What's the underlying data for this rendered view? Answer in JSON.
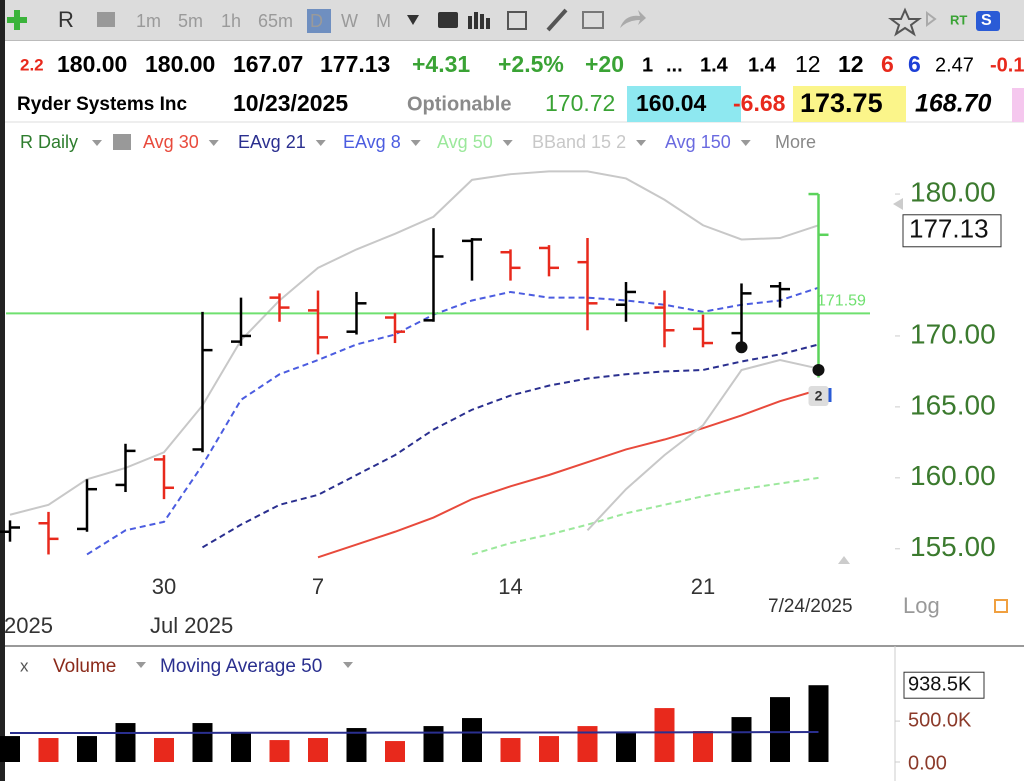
{
  "toolbar": {
    "symbol": "R",
    "intervals": [
      "1m",
      "5m",
      "1h",
      "65m",
      "D",
      "W",
      "M"
    ],
    "active": "D",
    "rt": "RT",
    "s": "S"
  },
  "quote_row1": [
    {
      "text": "2.2",
      "color": "#e8291c"
    },
    {
      "text": "180.00",
      "color": "#000"
    },
    {
      "text": "180.00",
      "color": "#000"
    },
    {
      "text": "167.07",
      "color": "#000"
    },
    {
      "text": "177.13",
      "color": "#000"
    },
    {
      "text": "+4.31",
      "color": "#3aa335"
    },
    {
      "text": "+2.5%",
      "color": "#3aa335"
    },
    {
      "text": "+20",
      "color": "#3aa335"
    },
    {
      "text": "1",
      "color": "#000"
    },
    {
      "text": "...",
      "color": "#000"
    },
    {
      "text": "1.4",
      "color": "#000"
    },
    {
      "text": "1.4",
      "color": "#000"
    },
    {
      "text": "12",
      "color": "#000"
    },
    {
      "text": "12",
      "color": "#000"
    },
    {
      "text": "6",
      "color": "#e8291c"
    },
    {
      "text": "6",
      "color": "#1c3fd6"
    },
    {
      "text": "2.47",
      "color": "#000"
    },
    {
      "text": "-0.1",
      "color": "#e8291c"
    }
  ],
  "quote_row2": [
    {
      "text": "Ryder Systems Inc",
      "color": "#000"
    },
    {
      "text": "10/23/2025",
      "color": "#000"
    },
    {
      "text": "Optionable",
      "color": "#8a8a8a"
    },
    {
      "text": "170.72",
      "color": "#3aa335"
    },
    {
      "text": "160.04",
      "color": "#000",
      "background": "#8ee8f0"
    },
    {
      "text": "-6.68",
      "color": "#e8291c"
    },
    {
      "text": "173.75",
      "color": "#000",
      "background": "#fbf58a"
    },
    {
      "text": "168.70",
      "color": "#000"
    }
  ],
  "chart_data": {
    "type": "ohlc",
    "study_label": "R Daily",
    "hidden_study": "Avg 150",
    "more": "More",
    "categories": [
      null,
      null,
      null,
      null,
      "30",
      null,
      null,
      null,
      "7",
      null,
      null,
      null,
      null,
      "14",
      null,
      null,
      null,
      null,
      "21",
      null,
      null,
      null
    ],
    "x_sublabels": [
      "2025",
      "Jul 2025"
    ],
    "date_label": "7/24/2025",
    "scale_label": "Log",
    "badge": "2",
    "open": [
      156.2,
      156.8,
      156.4,
      159.5,
      161.3,
      162.0,
      169.6,
      172.7,
      171.8,
      170.3,
      171.3,
      171.1,
      176.7,
      175.9,
      176.2,
      175.2,
      172.2,
      172.0,
      170.5,
      170.2,
      173.5,
      180.0
    ],
    "high": [
      157.0,
      157.6,
      159.9,
      162.4,
      161.6,
      171.7,
      172.7,
      173.0,
      173.2,
      173.1,
      171.6,
      177.6,
      176.9,
      176.1,
      176.4,
      176.9,
      173.8,
      173.2,
      171.5,
      173.7,
      173.8,
      180.0
    ],
    "low": [
      155.5,
      154.6,
      156.2,
      159.0,
      158.5,
      161.8,
      169.3,
      171.0,
      168.7,
      170.1,
      169.5,
      171.0,
      173.9,
      173.9,
      174.2,
      170.4,
      171.0,
      169.2,
      169.2,
      169.6,
      172.0,
      167.07
    ],
    "close": [
      156.5,
      155.7,
      159.2,
      161.9,
      159.3,
      169.0,
      170.0,
      172.0,
      169.9,
      172.3,
      170.3,
      175.6,
      176.8,
      174.8,
      174.8,
      172.3,
      173.1,
      170.4,
      169.5,
      173.0,
      173.3,
      177.13
    ],
    "colors": [
      "#000",
      "#e8291c",
      "#000",
      "#000",
      "#e8291c",
      "#000",
      "#000",
      "#e8291c",
      "#e8291c",
      "#000",
      "#e8291c",
      "#000",
      "#000",
      "#e8291c",
      "#e8291c",
      "#e8291c",
      "#000",
      "#e8291c",
      "#e8291c",
      "#000",
      "#000",
      "#5bd35b"
    ],
    "signals": [
      null,
      null,
      null,
      null,
      null,
      null,
      null,
      null,
      null,
      null,
      null,
      null,
      null,
      null,
      null,
      null,
      null,
      null,
      null,
      169.2,
      null,
      167.6
    ],
    "series": [
      {
        "name": "Avg 30",
        "color": "#e84a3c",
        "dash": false,
        "values": [
          null,
          null,
          null,
          null,
          null,
          null,
          null,
          null,
          154.4,
          155.3,
          156.2,
          157.2,
          158.5,
          159.4,
          160.2,
          161.1,
          162.0,
          162.7,
          163.5,
          164.4,
          165.4,
          166.2
        ]
      },
      {
        "name": "EAvg 21",
        "color": "#2a2f8f",
        "dash": true,
        "values": [
          null,
          null,
          null,
          null,
          null,
          155.1,
          156.7,
          158.1,
          158.8,
          160.2,
          161.6,
          163.4,
          164.8,
          165.8,
          166.5,
          167.0,
          167.3,
          167.5,
          167.6,
          168.2,
          168.7,
          169.4
        ]
      },
      {
        "name": "EAvg 8",
        "color": "#4b5ce0",
        "dash": true,
        "values": [
          null,
          null,
          154.6,
          156.3,
          156.9,
          160.9,
          165.5,
          167.3,
          168.3,
          169.4,
          170.1,
          171.5,
          172.5,
          173.1,
          172.7,
          172.7,
          172.5,
          172.2,
          171.7,
          172.2,
          172.5,
          173.4
        ]
      },
      {
        "name": "Avg 50",
        "color": "#9be89b",
        "dash": true,
        "values": [
          null,
          null,
          null,
          null,
          null,
          null,
          null,
          null,
          null,
          null,
          null,
          null,
          154.6,
          155.4,
          156.0,
          156.7,
          157.5,
          158.1,
          158.7,
          159.2,
          159.6,
          160.0
        ]
      },
      {
        "name": "BBand 15 2",
        "color": "#c8c8c8",
        "dash": false,
        "values": [
          157.4,
          158.1,
          159.9,
          160.7,
          161.8,
          165.1,
          169.7,
          172.5,
          174.8,
          176.1,
          177.2,
          178.4,
          181.0,
          181.4,
          181.6,
          181.6,
          181.1,
          179.6,
          177.8,
          176.8,
          176.9,
          177.8
        ],
        "lower": [
          null,
          null,
          null,
          null,
          null,
          null,
          null,
          null,
          null,
          null,
          null,
          null,
          null,
          null,
          null,
          156.3,
          159.2,
          161.6,
          163.7,
          167.6,
          168.3,
          167.7
        ]
      }
    ],
    "hline": {
      "value": 171.59,
      "color": "#6fe06f"
    },
    "last_price": 177.13,
    "ylim": [
      152.8,
      182.4
    ],
    "yticks": [
      {
        "value": 155,
        "label": "155.00"
      },
      {
        "value": 160,
        "label": "160.00"
      },
      {
        "value": 165,
        "label": "165.00"
      },
      {
        "value": 170,
        "label": "170.00"
      },
      {
        "value": 180,
        "label": "180.00"
      }
    ],
    "hidden_color": "#6a6ae0"
  },
  "volume_chart": {
    "type": "bar",
    "close_label": "x",
    "title": "Volume",
    "ma_name": "Moving Average 50",
    "values": [
      317000,
      293000,
      317000,
      476000,
      293000,
      476000,
      354000,
      268000,
      293000,
      415000,
      256000,
      439000,
      537000,
      293000,
      317000,
      439000,
      366000,
      659000,
      378000,
      549000,
      793000,
      938500
    ],
    "colors": [
      "#000",
      "#e8291c",
      "#000",
      "#000",
      "#e8291c",
      "#000",
      "#000",
      "#e8291c",
      "#e8291c",
      "#000",
      "#e8291c",
      "#000",
      "#000",
      "#e8291c",
      "#e8291c",
      "#e8291c",
      "#000",
      "#e8291c",
      "#e8291c",
      "#000",
      "#000",
      "#000"
    ],
    "ma": [
      354000,
      354000,
      355000,
      355000,
      356000,
      356000,
      357000,
      357000,
      358000,
      358000,
      359000,
      359000,
      360000,
      360000,
      361000,
      361000,
      362000,
      362000,
      363000,
      364000,
      365000,
      366000
    ],
    "ma_color": "#2a2f8f",
    "current": {
      "value": 938500,
      "label": "938.5K"
    },
    "ylim": [
      0,
      1100000
    ],
    "yticks": [
      {
        "value": 0,
        "label": "0.00"
      },
      {
        "value": 500000,
        "label": "500.0K"
      }
    ]
  }
}
